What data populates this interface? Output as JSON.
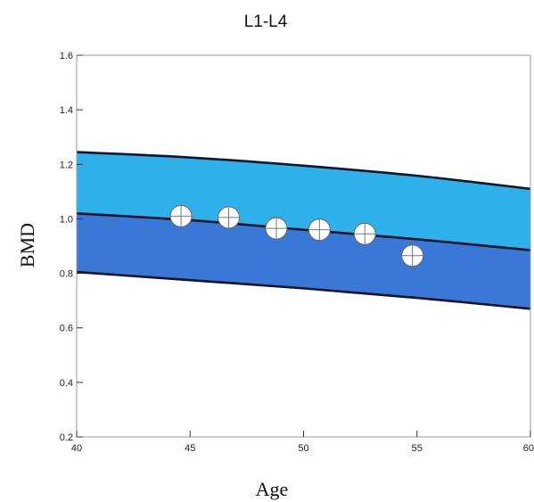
{
  "chart_data": {
    "type": "area",
    "title": "L1-L4",
    "xlabel": "Age",
    "ylabel": "BMD",
    "xlim": [
      40,
      60
    ],
    "ylim": [
      0.2,
      1.6
    ],
    "x_ticks": [
      40,
      45,
      50,
      55,
      60
    ],
    "x_tick_labels": [
      "40",
      "45",
      "50",
      "55",
      "60"
    ],
    "y_ticks": [
      0.2,
      0.4,
      0.6,
      0.8,
      1.0,
      1.2,
      1.4,
      1.6
    ],
    "y_tick_labels": [
      "0.2",
      "0.4",
      "0.6",
      "0.8",
      "1.0",
      "1.2",
      "1.4",
      "1.6"
    ],
    "bands": [
      {
        "x": [
          40,
          45,
          50,
          55,
          60
        ],
        "upper": [
          1.245,
          1.225,
          1.195,
          1.158,
          1.11
        ],
        "lower": [
          1.02,
          0.995,
          0.96,
          0.925,
          0.885
        ],
        "color": "#2eb0ea"
      },
      {
        "x": [
          40,
          45,
          50,
          55,
          60
        ],
        "upper": [
          1.02,
          0.995,
          0.96,
          0.925,
          0.885
        ],
        "lower": [
          0.805,
          0.775,
          0.745,
          0.71,
          0.67
        ],
        "color": "#3a78d8"
      }
    ],
    "series": [
      {
        "x": [
          44.6,
          46.7,
          48.8,
          50.7,
          52.7,
          54.8
        ],
        "y": [
          1.01,
          1.005,
          0.965,
          0.96,
          0.945,
          0.865
        ]
      }
    ],
    "grid": false
  }
}
